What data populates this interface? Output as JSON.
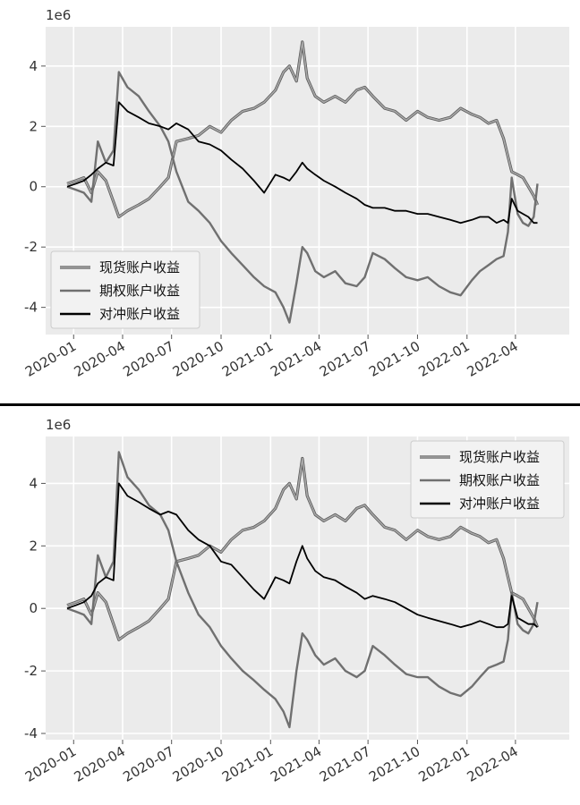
{
  "colors": {
    "spot": "#a8a8a8",
    "option": "#707070",
    "hedge": "#000000",
    "panel_bg": "#ebebeb",
    "grid": "#ffffff"
  },
  "chart_data": [
    {
      "type": "line",
      "title": "",
      "xlabel": "",
      "ylabel": "",
      "y_scale_label": "1e6",
      "ylim": [
        -4.9,
        5.3
      ],
      "xlim": [
        "2019-11-10",
        "2022-07-10"
      ],
      "x_ticks": [
        "2020-01",
        "2020-04",
        "2020-07",
        "2020-10",
        "2021-01",
        "2021-04",
        "2021-07",
        "2021-10",
        "2022-01",
        "2022-04"
      ],
      "y_ticks": [
        -4,
        -2,
        0,
        2,
        4
      ],
      "grid": true,
      "legend_position": "lower-left",
      "series": [
        {
          "name": "现货账户收益",
          "color": "#a8a8a8",
          "x": [
            "2019-12-20",
            "2020-01-05",
            "2020-01-20",
            "2020-02-03",
            "2020-02-15",
            "2020-03-01",
            "2020-03-15",
            "2020-03-25",
            "2020-04-10",
            "2020-05-01",
            "2020-05-20",
            "2020-06-10",
            "2020-06-25",
            "2020-07-10",
            "2020-08-01",
            "2020-08-20",
            "2020-09-10",
            "2020-10-01",
            "2020-10-20",
            "2020-11-10",
            "2020-12-01",
            "2020-12-20",
            "2021-01-10",
            "2021-01-25",
            "2021-02-05",
            "2021-02-18",
            "2021-03-01",
            "2021-03-10",
            "2021-03-25",
            "2021-04-10",
            "2021-05-01",
            "2021-05-20",
            "2021-06-10",
            "2021-06-25",
            "2021-07-10",
            "2021-08-01",
            "2021-08-20",
            "2021-09-10",
            "2021-10-01",
            "2021-10-20",
            "2021-11-10",
            "2021-12-01",
            "2021-12-20",
            "2022-01-10",
            "2022-01-25",
            "2022-02-10",
            "2022-02-25",
            "2022-03-10",
            "2022-03-18",
            "2022-03-25",
            "2022-04-05",
            "2022-04-15",
            "2022-04-25",
            "2022-05-05",
            "2022-05-12"
          ],
          "values": [
            0.1,
            0.2,
            0.3,
            -0.2,
            0.5,
            0.2,
            -0.5,
            -1.0,
            -0.8,
            -0.6,
            -0.4,
            0.0,
            0.3,
            1.5,
            1.6,
            1.7,
            2.0,
            1.8,
            2.2,
            2.5,
            2.6,
            2.8,
            3.2,
            3.8,
            4.0,
            3.5,
            4.8,
            3.6,
            3.0,
            2.8,
            3.0,
            2.8,
            3.2,
            3.3,
            3.0,
            2.6,
            2.5,
            2.2,
            2.5,
            2.3,
            2.2,
            2.3,
            2.6,
            2.4,
            2.3,
            2.1,
            2.2,
            1.6,
            1.0,
            0.5,
            0.4,
            0.3,
            0.0,
            -0.3,
            -0.6
          ]
        },
        {
          "name": "期权账户收益",
          "color": "#707070",
          "x": [
            "2019-12-20",
            "2020-01-05",
            "2020-01-20",
            "2020-02-03",
            "2020-02-15",
            "2020-03-01",
            "2020-03-15",
            "2020-03-25",
            "2020-04-10",
            "2020-05-01",
            "2020-05-20",
            "2020-06-10",
            "2020-06-25",
            "2020-07-10",
            "2020-08-01",
            "2020-08-20",
            "2020-09-10",
            "2020-10-01",
            "2020-10-20",
            "2020-11-10",
            "2020-12-01",
            "2020-12-20",
            "2021-01-10",
            "2021-01-25",
            "2021-02-05",
            "2021-02-18",
            "2021-03-01",
            "2021-03-10",
            "2021-03-25",
            "2021-04-10",
            "2021-05-01",
            "2021-05-20",
            "2021-06-10",
            "2021-06-25",
            "2021-07-10",
            "2021-08-01",
            "2021-08-20",
            "2021-09-10",
            "2021-10-01",
            "2021-10-20",
            "2021-11-10",
            "2021-12-01",
            "2021-12-20",
            "2022-01-10",
            "2022-01-25",
            "2022-02-10",
            "2022-02-25",
            "2022-03-10",
            "2022-03-18",
            "2022-03-25",
            "2022-04-05",
            "2022-04-15",
            "2022-04-25",
            "2022-05-05",
            "2022-05-12"
          ],
          "values": [
            0.0,
            -0.1,
            -0.2,
            -0.5,
            1.5,
            0.8,
            1.2,
            3.8,
            3.3,
            3.0,
            2.5,
            2.0,
            1.5,
            0.5,
            -0.5,
            -0.8,
            -1.2,
            -1.8,
            -2.2,
            -2.6,
            -3.0,
            -3.3,
            -3.5,
            -4.0,
            -4.5,
            -3.2,
            -2.0,
            -2.2,
            -2.8,
            -3.0,
            -2.8,
            -3.2,
            -3.3,
            -3.0,
            -2.2,
            -2.4,
            -2.7,
            -3.0,
            -3.1,
            -3.0,
            -3.3,
            -3.5,
            -3.6,
            -3.1,
            -2.8,
            -2.6,
            -2.4,
            -2.3,
            -1.5,
            0.3,
            -0.9,
            -1.2,
            -1.3,
            -1.0,
            0.1
          ]
        },
        {
          "name": "对冲账户收益",
          "color": "#000000",
          "x": [
            "2019-12-20",
            "2020-01-05",
            "2020-01-20",
            "2020-02-03",
            "2020-02-15",
            "2020-03-01",
            "2020-03-15",
            "2020-03-25",
            "2020-04-10",
            "2020-05-01",
            "2020-05-20",
            "2020-06-10",
            "2020-06-25",
            "2020-07-10",
            "2020-08-01",
            "2020-08-20",
            "2020-09-10",
            "2020-10-01",
            "2020-10-20",
            "2020-11-10",
            "2020-12-01",
            "2020-12-20",
            "2021-01-10",
            "2021-01-25",
            "2021-02-05",
            "2021-02-18",
            "2021-03-01",
            "2021-03-10",
            "2021-03-25",
            "2021-04-10",
            "2021-05-01",
            "2021-05-20",
            "2021-06-10",
            "2021-06-25",
            "2021-07-10",
            "2021-08-01",
            "2021-08-20",
            "2021-09-10",
            "2021-10-01",
            "2021-10-20",
            "2021-11-10",
            "2021-12-01",
            "2021-12-20",
            "2022-01-10",
            "2022-01-25",
            "2022-02-10",
            "2022-02-25",
            "2022-03-10",
            "2022-03-18",
            "2022-03-25",
            "2022-04-05",
            "2022-04-15",
            "2022-04-25",
            "2022-05-05",
            "2022-05-12"
          ],
          "values": [
            0.0,
            0.1,
            0.2,
            0.4,
            0.6,
            0.8,
            0.7,
            2.8,
            2.5,
            2.3,
            2.1,
            2.0,
            1.9,
            2.1,
            1.9,
            1.5,
            1.4,
            1.2,
            0.9,
            0.6,
            0.2,
            -0.2,
            0.4,
            0.3,
            0.2,
            0.5,
            0.8,
            0.6,
            0.4,
            0.2,
            0.0,
            -0.2,
            -0.4,
            -0.6,
            -0.7,
            -0.7,
            -0.8,
            -0.8,
            -0.9,
            -0.9,
            -1.0,
            -1.1,
            -1.2,
            -1.1,
            -1.0,
            -1.0,
            -1.2,
            -1.1,
            -1.2,
            -0.4,
            -0.8,
            -0.9,
            -1.0,
            -1.2,
            -1.2
          ]
        }
      ]
    },
    {
      "type": "line",
      "title": "",
      "xlabel": "",
      "ylabel": "",
      "y_scale_label": "1e6",
      "ylim": [
        -4.2,
        5.5
      ],
      "xlim": [
        "2019-11-10",
        "2022-07-10"
      ],
      "x_ticks": [
        "2020-01",
        "2020-04",
        "2020-07",
        "2020-10",
        "2021-01",
        "2021-04",
        "2021-07",
        "2021-10",
        "2022-01",
        "2022-04"
      ],
      "y_ticks": [
        -4,
        -2,
        0,
        2,
        4
      ],
      "grid": true,
      "legend_position": "upper-right",
      "series": [
        {
          "name": "现货账户收益",
          "color": "#a8a8a8",
          "x": [
            "2019-12-20",
            "2020-01-05",
            "2020-01-20",
            "2020-02-03",
            "2020-02-15",
            "2020-03-01",
            "2020-03-15",
            "2020-03-25",
            "2020-04-10",
            "2020-05-01",
            "2020-05-20",
            "2020-06-10",
            "2020-06-25",
            "2020-07-10",
            "2020-08-01",
            "2020-08-20",
            "2020-09-10",
            "2020-10-01",
            "2020-10-20",
            "2020-11-10",
            "2020-12-01",
            "2020-12-20",
            "2021-01-10",
            "2021-01-25",
            "2021-02-05",
            "2021-02-18",
            "2021-03-01",
            "2021-03-10",
            "2021-03-25",
            "2021-04-10",
            "2021-05-01",
            "2021-05-20",
            "2021-06-10",
            "2021-06-25",
            "2021-07-10",
            "2021-08-01",
            "2021-08-20",
            "2021-09-10",
            "2021-10-01",
            "2021-10-20",
            "2021-11-10",
            "2021-12-01",
            "2021-12-20",
            "2022-01-10",
            "2022-01-25",
            "2022-02-10",
            "2022-02-25",
            "2022-03-10",
            "2022-03-18",
            "2022-03-25",
            "2022-04-05",
            "2022-04-15",
            "2022-04-25",
            "2022-05-05",
            "2022-05-12"
          ],
          "values": [
            0.1,
            0.2,
            0.3,
            -0.2,
            0.5,
            0.2,
            -0.5,
            -1.0,
            -0.8,
            -0.6,
            -0.4,
            0.0,
            0.3,
            1.5,
            1.6,
            1.7,
            2.0,
            1.8,
            2.2,
            2.5,
            2.6,
            2.8,
            3.2,
            3.8,
            4.0,
            3.5,
            4.8,
            3.6,
            3.0,
            2.8,
            3.0,
            2.8,
            3.2,
            3.3,
            3.0,
            2.6,
            2.5,
            2.2,
            2.5,
            2.3,
            2.2,
            2.3,
            2.6,
            2.4,
            2.3,
            2.1,
            2.2,
            1.6,
            1.0,
            0.5,
            0.4,
            0.3,
            0.0,
            -0.3,
            -0.6
          ]
        },
        {
          "name": "期权账户收益",
          "color": "#707070",
          "x": [
            "2019-12-20",
            "2020-01-05",
            "2020-01-20",
            "2020-02-03",
            "2020-02-15",
            "2020-03-01",
            "2020-03-15",
            "2020-03-25",
            "2020-04-10",
            "2020-05-01",
            "2020-05-20",
            "2020-06-10",
            "2020-06-25",
            "2020-07-10",
            "2020-08-01",
            "2020-08-20",
            "2020-09-10",
            "2020-10-01",
            "2020-10-20",
            "2020-11-10",
            "2020-12-01",
            "2020-12-20",
            "2021-01-10",
            "2021-01-25",
            "2021-02-05",
            "2021-02-18",
            "2021-03-01",
            "2021-03-10",
            "2021-03-25",
            "2021-04-10",
            "2021-05-01",
            "2021-05-20",
            "2021-06-10",
            "2021-06-25",
            "2021-07-10",
            "2021-08-01",
            "2021-08-20",
            "2021-09-10",
            "2021-10-01",
            "2021-10-20",
            "2021-11-10",
            "2021-12-01",
            "2021-12-20",
            "2022-01-10",
            "2022-01-25",
            "2022-02-10",
            "2022-02-25",
            "2022-03-10",
            "2022-03-18",
            "2022-03-25",
            "2022-04-05",
            "2022-04-15",
            "2022-04-25",
            "2022-05-05",
            "2022-05-12"
          ],
          "values": [
            0.0,
            -0.1,
            -0.2,
            -0.5,
            1.7,
            1.0,
            1.5,
            5.0,
            4.2,
            3.8,
            3.3,
            3.0,
            2.5,
            1.5,
            0.5,
            -0.2,
            -0.6,
            -1.2,
            -1.6,
            -2.0,
            -2.3,
            -2.6,
            -2.9,
            -3.3,
            -3.8,
            -2.0,
            -0.8,
            -1.0,
            -1.5,
            -1.8,
            -1.6,
            -2.0,
            -2.2,
            -2.0,
            -1.2,
            -1.5,
            -1.8,
            -2.1,
            -2.2,
            -2.2,
            -2.5,
            -2.7,
            -2.8,
            -2.5,
            -2.2,
            -1.9,
            -1.8,
            -1.7,
            -1.0,
            0.5,
            -0.5,
            -0.7,
            -0.8,
            -0.5,
            0.2
          ]
        },
        {
          "name": "对冲账户收益",
          "color": "#000000",
          "x": [
            "2019-12-20",
            "2020-01-05",
            "2020-01-20",
            "2020-02-03",
            "2020-02-15",
            "2020-03-01",
            "2020-03-15",
            "2020-03-25",
            "2020-04-10",
            "2020-05-01",
            "2020-05-20",
            "2020-06-10",
            "2020-06-25",
            "2020-07-10",
            "2020-08-01",
            "2020-08-20",
            "2020-09-10",
            "2020-10-01",
            "2020-10-20",
            "2020-11-10",
            "2020-12-01",
            "2020-12-20",
            "2021-01-10",
            "2021-01-25",
            "2021-02-05",
            "2021-02-18",
            "2021-03-01",
            "2021-03-10",
            "2021-03-25",
            "2021-04-10",
            "2021-05-01",
            "2021-05-20",
            "2021-06-10",
            "2021-06-25",
            "2021-07-10",
            "2021-08-01",
            "2021-08-20",
            "2021-09-10",
            "2021-10-01",
            "2021-10-20",
            "2021-11-10",
            "2021-12-01",
            "2021-12-20",
            "2022-01-10",
            "2022-01-25",
            "2022-02-10",
            "2022-02-25",
            "2022-03-10",
            "2022-03-18",
            "2022-03-25",
            "2022-04-05",
            "2022-04-15",
            "2022-04-25",
            "2022-05-05",
            "2022-05-12"
          ],
          "values": [
            0.0,
            0.1,
            0.2,
            0.4,
            0.8,
            1.0,
            0.9,
            4.0,
            3.6,
            3.4,
            3.2,
            3.0,
            3.1,
            3.0,
            2.5,
            2.2,
            2.0,
            1.5,
            1.4,
            1.0,
            0.6,
            0.3,
            1.0,
            0.9,
            0.8,
            1.5,
            2.0,
            1.6,
            1.2,
            1.0,
            0.9,
            0.7,
            0.5,
            0.3,
            0.4,
            0.3,
            0.2,
            0.0,
            -0.2,
            -0.3,
            -0.4,
            -0.5,
            -0.6,
            -0.5,
            -0.4,
            -0.5,
            -0.6,
            -0.6,
            -0.5,
            0.4,
            -0.3,
            -0.4,
            -0.5,
            -0.5,
            -0.6
          ]
        }
      ]
    }
  ]
}
